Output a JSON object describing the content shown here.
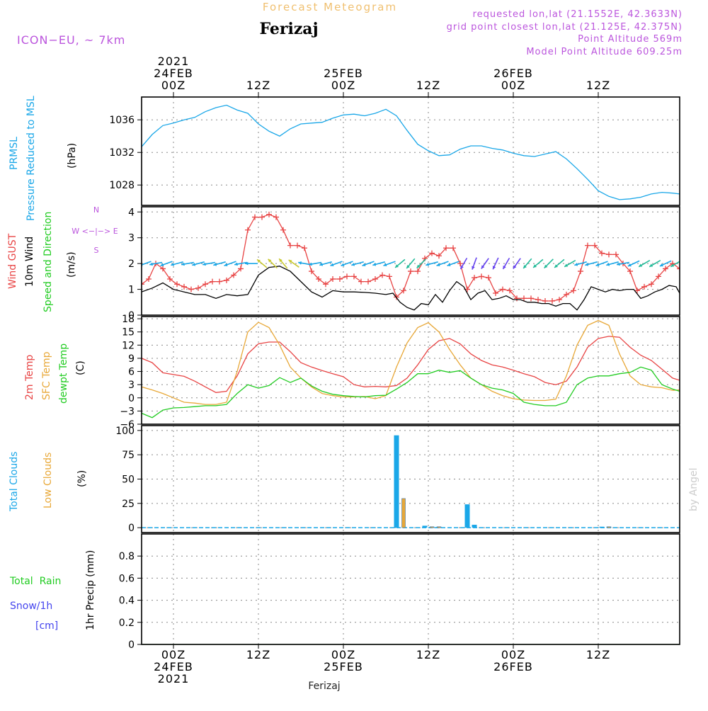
{
  "header": {
    "chart_kind": "Forecast Meteogram",
    "location": "Ferizaj",
    "model": "ICON−EU, ~ 7km",
    "requested": "requested lon,lat (21.1552E, 42.3633N)",
    "grid_point": "grid point closest lon,lat (21.125E, 42.375N)",
    "point_altitude": "Point Altitude 569m",
    "model_altitude": "Model Point Altitude 609.25m",
    "footer_location": "Ferizaj",
    "watermark": "by Angel"
  },
  "colors": {
    "pressure": "#1aa7e8",
    "gust": "#e84444",
    "wind": "#000000",
    "temp2m": "#e84444",
    "sfc": "#e8a838",
    "dewpt": "#22cc22",
    "total_clouds": "#1aa7e8",
    "low_clouds": "#e8a838",
    "rain": "#22cc22",
    "snow": "#4444ee",
    "header_purple": "#bb55dd",
    "header_orange": "#f0c070"
  },
  "time_axis": {
    "top_labels": [
      {
        "hour": 0,
        "lines": [
          "2021",
          "24FEB",
          "00Z"
        ]
      },
      {
        "hour": 12,
        "lines": [
          "12Z"
        ]
      },
      {
        "hour": 24,
        "lines": [
          "25FEB",
          "00Z"
        ]
      },
      {
        "hour": 36,
        "lines": [
          "12Z"
        ]
      },
      {
        "hour": 48,
        "lines": [
          "26FEB",
          "00Z"
        ]
      },
      {
        "hour": 60,
        "lines": [
          "12Z"
        ]
      }
    ],
    "bottom_labels": [
      {
        "hour": 0,
        "lines": [
          "00Z",
          "24FEB",
          "2021"
        ]
      },
      {
        "hour": 12,
        "lines": [
          "12Z"
        ]
      },
      {
        "hour": 24,
        "lines": [
          "00Z",
          "25FEB"
        ]
      },
      {
        "hour": 36,
        "lines": [
          "12Z"
        ]
      },
      {
        "hour": 48,
        "lines": [
          "00Z",
          "26FEB"
        ]
      },
      {
        "hour": 60,
        "lines": [
          "12Z"
        ]
      }
    ]
  },
  "panels": {
    "pressure": {
      "labels": [
        "PRMSL",
        "Pressure Reduced to MSL"
      ],
      "unit": "(hPa)"
    },
    "wind": {
      "labels": [
        "Wind GUST",
        "10m Wind",
        "Speed and Direction"
      ],
      "unit": "(m/s)",
      "compass": [
        "N",
        "W <−|−> E",
        "S"
      ]
    },
    "temp": {
      "labels": [
        "2m Temp",
        "SFC Temp",
        "dewpt Temp"
      ],
      "unit": "(C)"
    },
    "clouds": {
      "labels": [
        "Total Clouds",
        "Low Clouds"
      ],
      "unit": "(%)"
    },
    "precip": {
      "labels": [
        "Total  Rain",
        "Snow/1h",
        "[cm]"
      ],
      "unit": "1hr Precip (mm)"
    }
  },
  "chart_data": [
    {
      "type": "line",
      "title": "PRMSL Pressure Reduced to MSL",
      "ylabel": "(hPa)",
      "ylim": [
        1025.5,
        1038.8
      ],
      "yticks": [
        1028,
        1032,
        1036
      ],
      "xlim": [
        -4.5,
        71.5
      ],
      "grid": true,
      "series": [
        {
          "name": "PRMSL",
          "x": [
            -4.5,
            -3,
            -1.5,
            0,
            1.5,
            3,
            4.5,
            6,
            7.5,
            9,
            10.5,
            12,
            13.5,
            15,
            16.5,
            18,
            19.5,
            21,
            22.5,
            24,
            25.5,
            27,
            28.5,
            30,
            31.5,
            33,
            34.5,
            36,
            37.5,
            39,
            40.5,
            42,
            43.5,
            45,
            46.5,
            48,
            49.5,
            51,
            52.5,
            54,
            55.5,
            57,
            58.5,
            60,
            61.5,
            63,
            64.5,
            66,
            67.5,
            69,
            70.5,
            71.5
          ],
          "y": [
            1032.7,
            1034.2,
            1035.3,
            1035.6,
            1036.0,
            1036.3,
            1037.0,
            1037.5,
            1037.8,
            1037.2,
            1036.8,
            1035.5,
            1034.6,
            1034.0,
            1034.9,
            1035.5,
            1035.6,
            1035.7,
            1036.2,
            1036.6,
            1036.7,
            1036.5,
            1036.8,
            1037.3,
            1036.5,
            1034.7,
            1033.0,
            1032.2,
            1031.6,
            1031.7,
            1032.4,
            1032.8,
            1032.8,
            1032.5,
            1032.3,
            1031.9,
            1031.6,
            1031.5,
            1031.8,
            1032.1,
            1031.2,
            1030.0,
            1028.7,
            1027.3,
            1026.6,
            1026.2,
            1026.3,
            1026.5,
            1026.9,
            1027.1,
            1027.0,
            1026.9
          ]
        }
      ]
    },
    {
      "type": "line",
      "title": "Wind GUST / 10m Wind Speed and Direction",
      "ylabel": "(m/s)",
      "ylim": [
        0,
        4.2
      ],
      "yticks": [
        0,
        1,
        2,
        3,
        4
      ],
      "xlim": [
        -4.5,
        71.5
      ],
      "grid": true,
      "series": [
        {
          "name": "Wind GUST",
          "marker": "+",
          "x": [
            -4.5,
            -3.5,
            -2.5,
            -1.5,
            -0.5,
            0.5,
            1.5,
            2.5,
            3.5,
            4.5,
            5.5,
            6.5,
            7.5,
            8.5,
            9.5,
            10.5,
            11.5,
            12.5,
            13.5,
            14.5,
            15.5,
            16.5,
            17.5,
            18.5,
            19.5,
            20.5,
            21.5,
            22.5,
            23.5,
            24.5,
            25.5,
            26.5,
            27.5,
            28.5,
            29.5,
            30.5,
            31.5,
            32.5,
            33.5,
            34.5,
            35.5,
            36.5,
            37.5,
            38.5,
            39.5,
            40.5,
            41.5,
            42.5,
            43.5,
            44.5,
            45.5,
            46.5,
            47.5,
            48.5,
            49.5,
            50.5,
            51.5,
            52.5,
            53.5,
            54.5,
            55.5,
            56.5,
            57.5,
            58.5,
            59.5,
            60.5,
            61.5,
            62.5,
            63.5,
            64.5,
            65.5,
            66.5,
            67.5,
            68.5,
            69.5,
            70.5,
            71.5
          ],
          "y": [
            1.2,
            1.4,
            2.0,
            1.8,
            1.4,
            1.2,
            1.1,
            1.0,
            1.05,
            1.2,
            1.3,
            1.3,
            1.35,
            1.55,
            1.8,
            3.3,
            3.8,
            3.8,
            3.9,
            3.8,
            3.3,
            2.7,
            2.7,
            2.6,
            1.7,
            1.4,
            1.2,
            1.4,
            1.4,
            1.5,
            1.5,
            1.3,
            1.3,
            1.4,
            1.55,
            1.5,
            0.7,
            0.95,
            1.7,
            1.7,
            2.2,
            2.4,
            2.3,
            2.6,
            2.6,
            2.0,
            1.0,
            1.45,
            1.5,
            1.45,
            0.85,
            1.0,
            0.95,
            0.65,
            0.65,
            0.65,
            0.6,
            0.55,
            0.55,
            0.6,
            0.8,
            0.95,
            1.7,
            2.7,
            2.7,
            2.4,
            2.35,
            2.35,
            2.0,
            1.7,
            0.95,
            1.1,
            1.2,
            1.5,
            1.8,
            2.0,
            1.8
          ]
        },
        {
          "name": "10m Wind",
          "x": [
            -4.5,
            -3,
            -1.5,
            0,
            1.5,
            3,
            4.5,
            6,
            7.5,
            9,
            10.5,
            12,
            13.5,
            15,
            16.5,
            18,
            19.5,
            21,
            22.5,
            24,
            25.5,
            27,
            28.5,
            30,
            31,
            32,
            33,
            34,
            35,
            36,
            37,
            38,
            39,
            40,
            41,
            42,
            43,
            44,
            45,
            46,
            47,
            48,
            49,
            50,
            51,
            52,
            53,
            54,
            55,
            56,
            57,
            58,
            59,
            60,
            61,
            62,
            63,
            64,
            65,
            66,
            67,
            68,
            69,
            70,
            71,
            71.5
          ],
          "y": [
            0.9,
            1.05,
            1.25,
            1.0,
            0.9,
            0.8,
            0.8,
            0.65,
            0.8,
            0.75,
            0.8,
            1.55,
            1.85,
            1.9,
            1.7,
            1.3,
            0.9,
            0.7,
            0.95,
            0.9,
            0.9,
            0.88,
            0.85,
            0.8,
            0.85,
            0.5,
            0.3,
            0.2,
            0.45,
            0.4,
            0.8,
            0.5,
            0.95,
            1.3,
            1.1,
            0.6,
            0.85,
            0.95,
            0.6,
            0.65,
            0.75,
            0.6,
            0.6,
            0.5,
            0.5,
            0.45,
            0.45,
            0.35,
            0.45,
            0.45,
            0.2,
            0.6,
            1.1,
            1.0,
            0.9,
            1.0,
            0.95,
            1.0,
            1.0,
            0.65,
            0.75,
            0.9,
            1.0,
            1.15,
            1.1,
            0.85
          ]
        }
      ],
      "wind_vectors": {
        "note": "arrows plotted along 10m wind near y=2 showing direction",
        "x": [
          -4,
          -2.5,
          -1,
          0.5,
          2,
          3.5,
          5,
          6.5,
          8,
          9.5,
          11,
          12.5,
          14,
          15.5,
          17,
          18.5,
          20,
          21.5,
          23,
          24.5,
          26,
          27.5,
          29,
          30.5,
          32,
          33.5,
          35,
          36.5,
          38,
          39.5,
          41,
          42.5,
          44,
          45.5,
          47,
          48.5,
          50,
          51.5,
          53,
          54.5,
          56,
          57.5,
          59,
          60.5,
          62,
          63.5,
          65,
          66.5,
          68,
          69.5,
          71
        ],
        "dir_deg": [
          250,
          260,
          250,
          255,
          260,
          255,
          260,
          255,
          250,
          260,
          270,
          310,
          315,
          320,
          305,
          280,
          260,
          255,
          250,
          250,
          255,
          250,
          255,
          250,
          230,
          220,
          225,
          255,
          250,
          250,
          210,
          200,
          215,
          205,
          210,
          215,
          220,
          230,
          225,
          230,
          240,
          255,
          255,
          250,
          255,
          260,
          245,
          240,
          240,
          245,
          240
        ]
      }
    },
    {
      "type": "line",
      "title": "2m Temp / SFC Temp / dewpt Temp",
      "ylabel": "(C)",
      "ylim": [
        -6,
        18.5
      ],
      "yticks": [
        -6,
        -3,
        0,
        3,
        6,
        9,
        12,
        15,
        18
      ],
      "xlim": [
        -4.5,
        71.5
      ],
      "grid": true,
      "series": [
        {
          "name": "2m Temp",
          "x": [
            -4.5,
            -3,
            -1.5,
            0,
            1.5,
            3,
            4.5,
            6,
            7.5,
            9,
            10.5,
            12,
            13.5,
            15,
            16.5,
            18,
            19.5,
            21,
            22.5,
            24,
            25.5,
            27,
            28.5,
            30,
            31.5,
            33,
            34.5,
            36,
            37.5,
            39,
            40.5,
            42,
            43.5,
            45,
            46.5,
            48,
            49.5,
            51,
            52.5,
            54,
            55.5,
            57,
            58.5,
            60,
            61.5,
            63,
            64.5,
            66,
            67.5,
            69,
            70.5,
            71.5
          ],
          "y": [
            9.0,
            8.0,
            5.7,
            5.3,
            4.9,
            3.8,
            2.5,
            1.2,
            1.5,
            5.0,
            10.0,
            12.3,
            12.7,
            12.7,
            10.5,
            8.0,
            7.0,
            6.2,
            5.5,
            4.8,
            3.0,
            2.5,
            2.6,
            2.5,
            2.8,
            4.5,
            7.5,
            11.0,
            13.0,
            13.5,
            12.3,
            10.0,
            8.5,
            7.5,
            7.0,
            6.3,
            5.5,
            4.8,
            3.5,
            3.0,
            3.8,
            7.0,
            11.5,
            13.5,
            14.0,
            13.8,
            11.5,
            9.7,
            8.5,
            6.5,
            4.5,
            4.0
          ]
        },
        {
          "name": "SFC Temp",
          "x": [
            -4.5,
            -3,
            -1.5,
            0,
            1.5,
            3,
            4.5,
            6,
            7.5,
            9,
            10.5,
            12,
            13.5,
            15,
            16.5,
            18,
            19.5,
            21,
            22.5,
            24,
            25.5,
            27,
            28.5,
            30,
            31.5,
            33,
            34.5,
            36,
            37.5,
            39,
            40.5,
            42,
            43.5,
            45,
            46.5,
            48,
            49.5,
            51,
            52.5,
            54,
            55.5,
            57,
            58.5,
            60,
            61.5,
            63,
            64.5,
            66,
            67.5,
            69,
            70.5,
            71.5
          ],
          "y": [
            2.5,
            1.8,
            1.0,
            0.0,
            -1.0,
            -1.2,
            -1.5,
            -1.5,
            -1.0,
            6.0,
            15.0,
            17.2,
            16.0,
            12.0,
            7.0,
            4.5,
            2.5,
            1.0,
            0.5,
            0.2,
            0.2,
            0.3,
            -0.2,
            0.5,
            7.0,
            12.5,
            16.0,
            17.1,
            15.0,
            11.0,
            7.5,
            4.5,
            3.0,
            1.5,
            0.5,
            -0.2,
            -0.5,
            -0.6,
            -0.6,
            -0.3,
            5.0,
            12.0,
            16.5,
            17.6,
            16.5,
            10.0,
            5.0,
            3.0,
            2.5,
            2.3,
            1.7,
            1.8
          ]
        },
        {
          "name": "dewpt Temp",
          "x": [
            -4.5,
            -3,
            -1.5,
            0,
            1.5,
            3,
            4.5,
            6,
            7.5,
            9,
            10.5,
            12,
            13.5,
            15,
            16.5,
            18,
            19.5,
            21,
            22.5,
            24,
            25.5,
            27,
            28.5,
            30,
            31.5,
            33,
            34.5,
            36,
            37.5,
            39,
            40.5,
            42,
            43.5,
            45,
            46.5,
            48,
            49.5,
            51,
            52.5,
            54,
            55.5,
            57,
            58.5,
            60,
            61.5,
            63,
            64.5,
            66,
            67.5,
            69,
            70.5,
            71.5
          ],
          "y": [
            -3.5,
            -4.5,
            -2.8,
            -2.3,
            -2.2,
            -2.0,
            -1.8,
            -1.8,
            -1.5,
            1.0,
            3.0,
            2.2,
            2.8,
            4.6,
            3.5,
            4.5,
            2.7,
            1.5,
            0.8,
            0.5,
            0.3,
            0.2,
            0.5,
            0.6,
            2.0,
            3.5,
            5.5,
            5.5,
            6.3,
            5.8,
            6.2,
            4.5,
            3.0,
            2.2,
            1.8,
            1.0,
            -1.0,
            -1.5,
            -1.8,
            -1.8,
            -1.0,
            3.0,
            4.5,
            5.0,
            5.0,
            5.5,
            5.8,
            7.0,
            6.3,
            3.0,
            2.0,
            1.5
          ]
        }
      ]
    },
    {
      "type": "bar",
      "title": "Total Clouds / Low Clouds",
      "ylabel": "(%)",
      "ylim": [
        -5,
        105
      ],
      "yticks": [
        0,
        25,
        50,
        75,
        100
      ],
      "xlim": [
        -4.5,
        71.5
      ],
      "grid": true,
      "series": [
        {
          "name": "Total Clouds",
          "x": [
            31.5,
            32.5,
            35.5,
            36.5,
            37.5,
            41.5,
            42.5,
            60.5,
            61.5
          ],
          "values": [
            95,
            0,
            2,
            1,
            1,
            24,
            3,
            1,
            1
          ]
        },
        {
          "name": "Low Clouds",
          "x": [
            32.5,
            36.5,
            37.5,
            61.5
          ],
          "values": [
            30,
            1,
            1,
            1
          ]
        }
      ]
    },
    {
      "type": "line",
      "title": "1hr Precip",
      "ylabel": "1hr Precip (mm)",
      "ylim": [
        0,
        1.0
      ],
      "yticks": [
        0,
        0.2,
        0.4,
        0.6,
        0.8
      ],
      "xlim": [
        -4.5,
        71.5
      ],
      "grid": true,
      "series": [
        {
          "name": "Total  Rain",
          "x": [
            -4.5,
            71.5
          ],
          "y": [
            0,
            0
          ]
        }
      ]
    }
  ]
}
